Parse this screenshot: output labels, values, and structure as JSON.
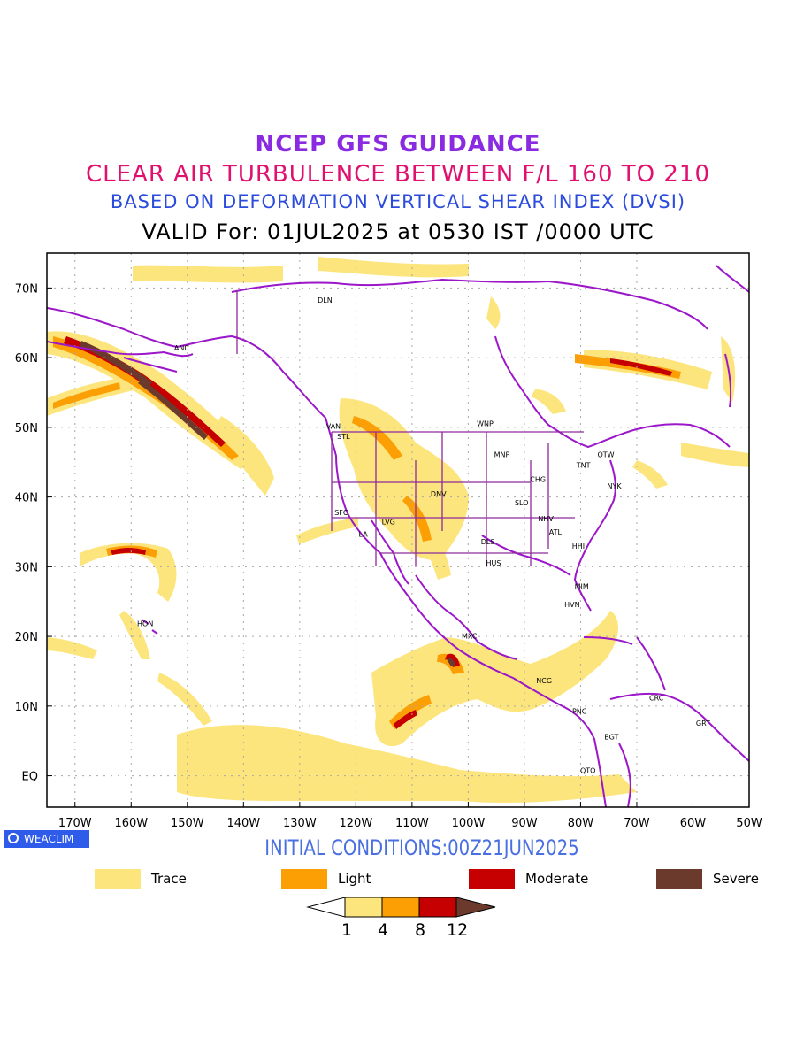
{
  "header": {
    "line1": "NCEP GFS GUIDANCE",
    "line2": "CLEAR AIR TURBULENCE BETWEEN F/L 160 TO 210",
    "line3": "BASED ON DEFORMATION VERTICAL SHEAR INDEX (DVSI)",
    "line4": "VALID For: 01JUL2025 at 0530 IST /0000 UTC"
  },
  "map": {
    "lat_ticks": [
      "70N",
      "60N",
      "50N",
      "40N",
      "30N",
      "20N",
      "10N",
      "EQ"
    ],
    "lon_ticks": [
      "170W",
      "160W",
      "150W",
      "140W",
      "130W",
      "120W",
      "110W",
      "100W",
      "90W",
      "80W",
      "70W",
      "60W",
      "50W"
    ],
    "stations": [
      {
        "name": "DLN",
        "lon": -125.5,
        "lat": 67.9
      },
      {
        "name": "ANC",
        "lon": -151,
        "lat": 61
      },
      {
        "name": "VAN",
        "lon": -124,
        "lat": 49.8
      },
      {
        "name": "STL",
        "lon": -122.2,
        "lat": 48.3
      },
      {
        "name": "WNP",
        "lon": -97,
        "lat": 50.2
      },
      {
        "name": "OTW",
        "lon": -75.5,
        "lat": 45.7
      },
      {
        "name": "TNT",
        "lon": -79.5,
        "lat": 44.2
      },
      {
        "name": "MNP",
        "lon": -94,
        "lat": 45.7
      },
      {
        "name": "CHG",
        "lon": -87.6,
        "lat": 42.2
      },
      {
        "name": "NYK",
        "lon": -74,
        "lat": 41.2
      },
      {
        "name": "DNV",
        "lon": -105.3,
        "lat": 40.1
      },
      {
        "name": "SFC",
        "lon": -122.6,
        "lat": 37.4
      },
      {
        "name": "SLO",
        "lon": -90.5,
        "lat": 38.8
      },
      {
        "name": "LVG",
        "lon": -114.2,
        "lat": 36.1
      },
      {
        "name": "NHV",
        "lon": -86.2,
        "lat": 36.5
      },
      {
        "name": "LA",
        "lon": -118.7,
        "lat": 34.3
      },
      {
        "name": "ATL",
        "lon": -84.5,
        "lat": 34.6
      },
      {
        "name": "DLS",
        "lon": -96.5,
        "lat": 33.2
      },
      {
        "name": "HHI",
        "lon": -80.4,
        "lat": 32.6
      },
      {
        "name": "HUS",
        "lon": -95.5,
        "lat": 30.2
      },
      {
        "name": "MIM",
        "lon": -79.8,
        "lat": 26.8
      },
      {
        "name": "HVN",
        "lon": -81.5,
        "lat": 24.2
      },
      {
        "name": "HON",
        "lon": -157.5,
        "lat": 21.5
      },
      {
        "name": "MXC",
        "lon": -99.8,
        "lat": 19.7
      },
      {
        "name": "NCG",
        "lon": -86.5,
        "lat": 13.3
      },
      {
        "name": "CRC",
        "lon": -66.5,
        "lat": 10.8
      },
      {
        "name": "PNC",
        "lon": -80.2,
        "lat": 8.9
      },
      {
        "name": "GRT",
        "lon": -58.2,
        "lat": 7.2
      },
      {
        "name": "BGT",
        "lon": -74.5,
        "lat": 5.2
      },
      {
        "name": "QTO",
        "lon": -78.7,
        "lat": 0.4
      }
    ]
  },
  "watermark": "WEACLIM",
  "initial_conditions": "INITIAL CONDITIONS:00Z21JUN2025",
  "legend": [
    {
      "label": "Trace",
      "color": "#fde57d"
    },
    {
      "label": "Light",
      "color": "#fb9f05"
    },
    {
      "label": "Moderate",
      "color": "#c60000"
    },
    {
      "label": "Severe",
      "color": "#6b3a2c"
    }
  ],
  "colorbar": {
    "ticks": [
      "1",
      "4",
      "8",
      "12"
    ],
    "colors": [
      "#ffffff",
      "#fde57d",
      "#fb9f05",
      "#c60000",
      "#6b3a2c"
    ]
  }
}
